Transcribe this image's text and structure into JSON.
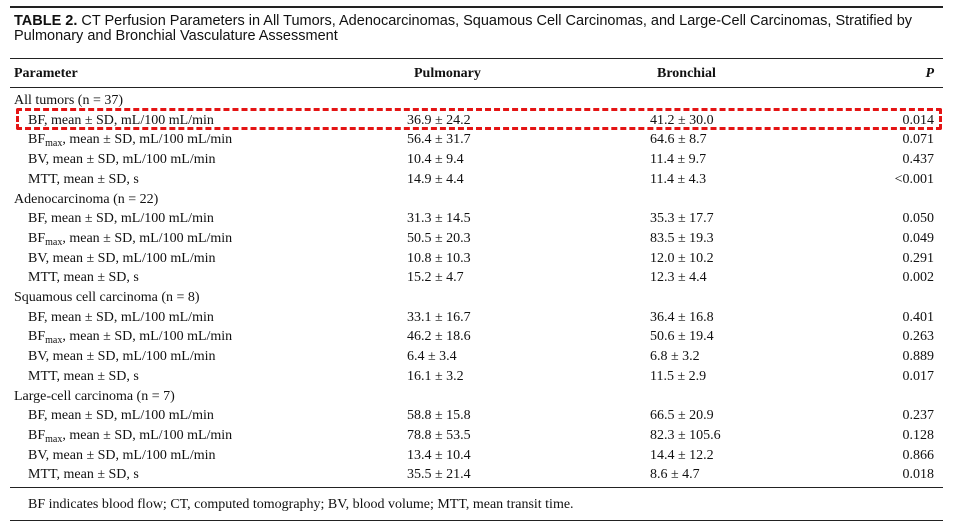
{
  "caption": {
    "label": "TABLE 2.",
    "line1": "CT Perfusion Parameters in All Tumors, Adenocarcinomas, Squamous Cell Carcinomas, and Large-Cell Carcinomas, Stratified by",
    "line2": "Pulmonary and Bronchial Vasculature Assessment"
  },
  "headers": {
    "parameter": "Parameter",
    "pulmonary": "Pulmonary",
    "bronchial": "Bronchial",
    "p": "P"
  },
  "rows": [
    {
      "group": "All tumors (n = 37)"
    },
    {
      "param": "BF, mean ± SD, mL/100 mL/min",
      "pul": "36.9 ± 24.2",
      "bro": "41.2 ± 30.0",
      "p": "0.014"
    },
    {
      "param_main": "BF",
      "param_sub": "max",
      "param_rest": ", mean ± SD, mL/100 mL/min",
      "pul": "56.4 ± 31.7",
      "bro": "64.6 ± 8.7",
      "p": "0.071"
    },
    {
      "param": "BV, mean ± SD, mL/100 mL/min",
      "pul": "10.4 ± 9.4",
      "bro": "11.4 ± 9.7",
      "p": "0.437"
    },
    {
      "param": "MTT, mean ± SD, s",
      "pul": "14.9 ± 4.4",
      "bro": "11.4 ± 4.3",
      "p": "<0.001"
    },
    {
      "group": "Adenocarcinoma (n = 22)"
    },
    {
      "param": "BF, mean ± SD, mL/100 mL/min",
      "pul": "31.3 ± 14.5",
      "bro": "35.3 ± 17.7",
      "p": "0.050"
    },
    {
      "param_main": "BF",
      "param_sub": "max",
      "param_rest": ", mean ± SD, mL/100 mL/min",
      "pul": "50.5 ± 20.3",
      "bro": "83.5 ± 19.3",
      "p": "0.049"
    },
    {
      "param": "BV, mean ± SD, mL/100 mL/min",
      "pul": "10.8 ± 10.3",
      "bro": "12.0 ± 10.2",
      "p": "0.291"
    },
    {
      "param": "MTT, mean ± SD, s",
      "pul": "15.2 ± 4.7",
      "bro": "12.3 ± 4.4",
      "p": "0.002"
    },
    {
      "group": "Squamous cell carcinoma (n = 8)"
    },
    {
      "param": "BF, mean ± SD, mL/100 mL/min",
      "pul": "33.1 ± 16.7",
      "bro": "36.4 ± 16.8",
      "p": "0.401"
    },
    {
      "param_main": "BF",
      "param_sub": "max",
      "param_rest": ", mean ± SD, mL/100 mL/min",
      "pul": "46.2 ± 18.6",
      "bro": "50.6 ± 19.4",
      "p": "0.263"
    },
    {
      "param": "BV, mean ± SD, mL/100 mL/min",
      "pul": "6.4 ± 3.4",
      "bro": "6.8 ± 3.2",
      "p": "0.889"
    },
    {
      "param": "MTT, mean ± SD, s",
      "pul": "16.1 ± 3.2",
      "bro": "11.5 ± 2.9",
      "p": "0.017"
    },
    {
      "group": "Large-cell carcinoma (n = 7)"
    },
    {
      "param": "BF, mean ± SD, mL/100 mL/min",
      "pul": "58.8 ± 15.8",
      "bro": "66.5 ± 20.9",
      "p": "0.237"
    },
    {
      "param_main": "BF",
      "param_sub": "max",
      "param_rest": ", mean ± SD, mL/100 mL/min",
      "pul": "78.8 ± 53.5",
      "bro": "82.3 ± 105.6",
      "p": "0.128"
    },
    {
      "param": "BV, mean ± SD, mL/100 mL/min",
      "pul": "13.4 ± 10.4",
      "bro": "14.4 ± 12.2",
      "p": "0.866"
    },
    {
      "param": "MTT, mean ± SD, s",
      "pul": "35.5 ± 21.4",
      "bro": "8.6 ± 4.7",
      "p": "0.018"
    }
  ],
  "footnote": "BF indicates blood flow; CT, computed tomography; BV, blood volume; MTT, mean transit time.",
  "colors": {
    "highlight_border": "#e41414",
    "rule": "#222222"
  }
}
